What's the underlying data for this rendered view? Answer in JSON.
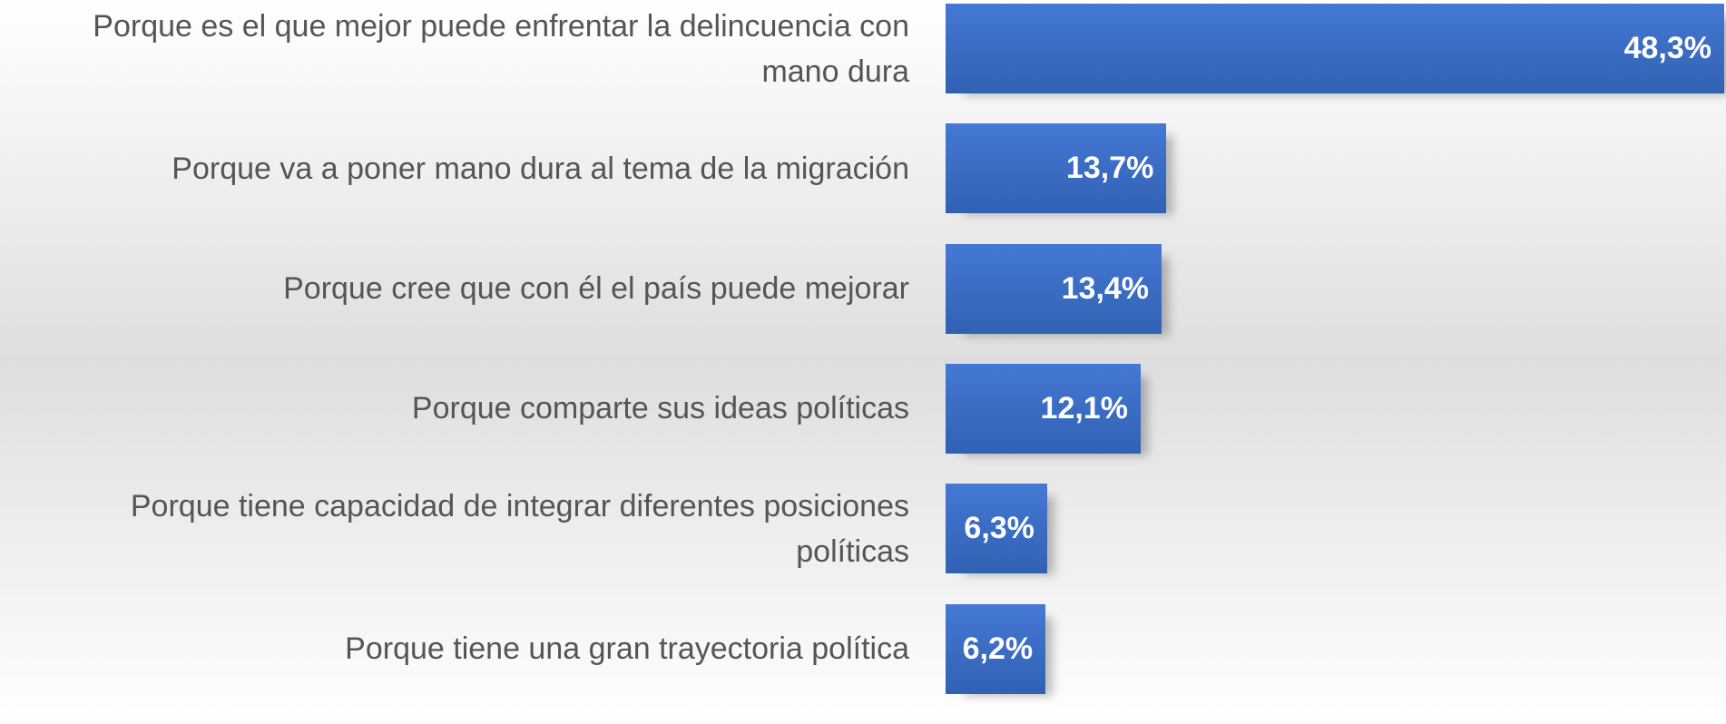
{
  "chart_data": {
    "type": "bar",
    "orientation": "horizontal",
    "categories": [
      "Porque es el que mejor puede enfrentar la delincuencia con mano dura",
      "Porque va a poner mano dura al tema de la migración",
      "Porque cree que con él el país puede mejorar",
      "Porque comparte sus ideas políticas",
      "Porque tiene capacidad de integrar diferentes posiciones políticas",
      "Porque tiene una gran trayectoria política"
    ],
    "values": [
      48.3,
      13.7,
      13.4,
      12.1,
      6.3,
      6.2
    ],
    "value_labels": [
      "48,3%",
      "13,7%",
      "13,4%",
      "12,1%",
      "6,3%",
      "6,2%"
    ],
    "color": "#3f6fc4"
  }
}
